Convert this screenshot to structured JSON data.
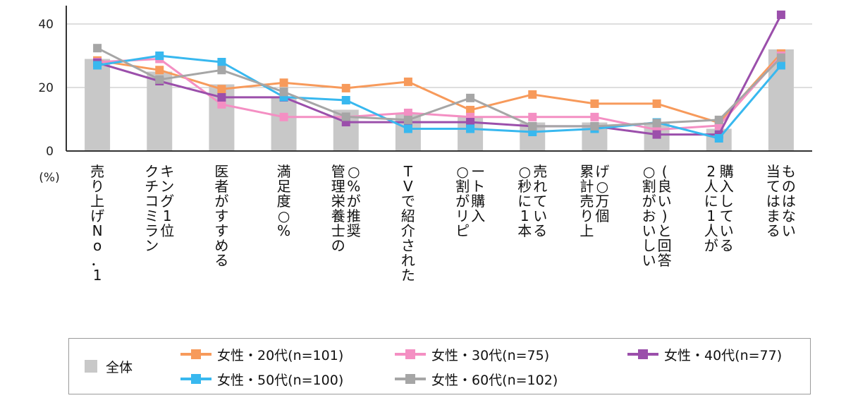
{
  "chart_data": {
    "type": "bar+line",
    "y_unit_label": "(%)",
    "ylim": [
      0,
      45
    ],
    "yticks": [
      0,
      20,
      40
    ],
    "grid": true,
    "legend_position": "bottom",
    "categories": [
      "売り上げNo．1",
      "クチコミランキング1位",
      "医者がすすめる",
      "満足度○%",
      "管理栄養士の○%が推奨",
      "TVで紹介された",
      "○割がリピート購入",
      "○秒に1本売れている",
      "累計売り上げ○万個",
      "○割がおいしい(良い)と回答",
      "2人に1人が購入している",
      "当てはまるものはない"
    ],
    "bars": {
      "name": "全体",
      "color": "#c8c8c8",
      "values": [
        29,
        25,
        21,
        17,
        13,
        12,
        11,
        9,
        9,
        9,
        7,
        32
      ]
    },
    "series": [
      {
        "name": "女性・20代(n=101)",
        "color": "#f79a5b",
        "values": [
          28.5,
          25.5,
          19.5,
          21.5,
          19.8,
          21.8,
          12.9,
          17.8,
          14.9,
          14.9,
          8.9,
          30.7
        ]
      },
      {
        "name": "女性・30代(n=75)",
        "color": "#f48fc3",
        "values": [
          28,
          29,
          14.7,
          10.7,
          10.7,
          12,
          10.7,
          10.7,
          10.7,
          6.7,
          8,
          30
        ]
      },
      {
        "name": "女性・40代(n=77)",
        "color": "#9b4fab",
        "values": [
          27.8,
          22,
          16.9,
          16.9,
          9.1,
          9.1,
          9.1,
          7.8,
          7.8,
          5.2,
          5.2,
          42.9
        ]
      },
      {
        "name": "女性・50代(n=100)",
        "color": "#38b8ef",
        "values": [
          27,
          30,
          28,
          17,
          16,
          7,
          7,
          6,
          7,
          9,
          4,
          27
        ]
      },
      {
        "name": "女性・60代(n=102)",
        "color": "#a6a6a6",
        "values": [
          32.4,
          22.5,
          25.5,
          18.6,
          10.8,
          9.8,
          16.7,
          7.8,
          7.8,
          8.8,
          9.8,
          29.4
        ]
      }
    ]
  }
}
